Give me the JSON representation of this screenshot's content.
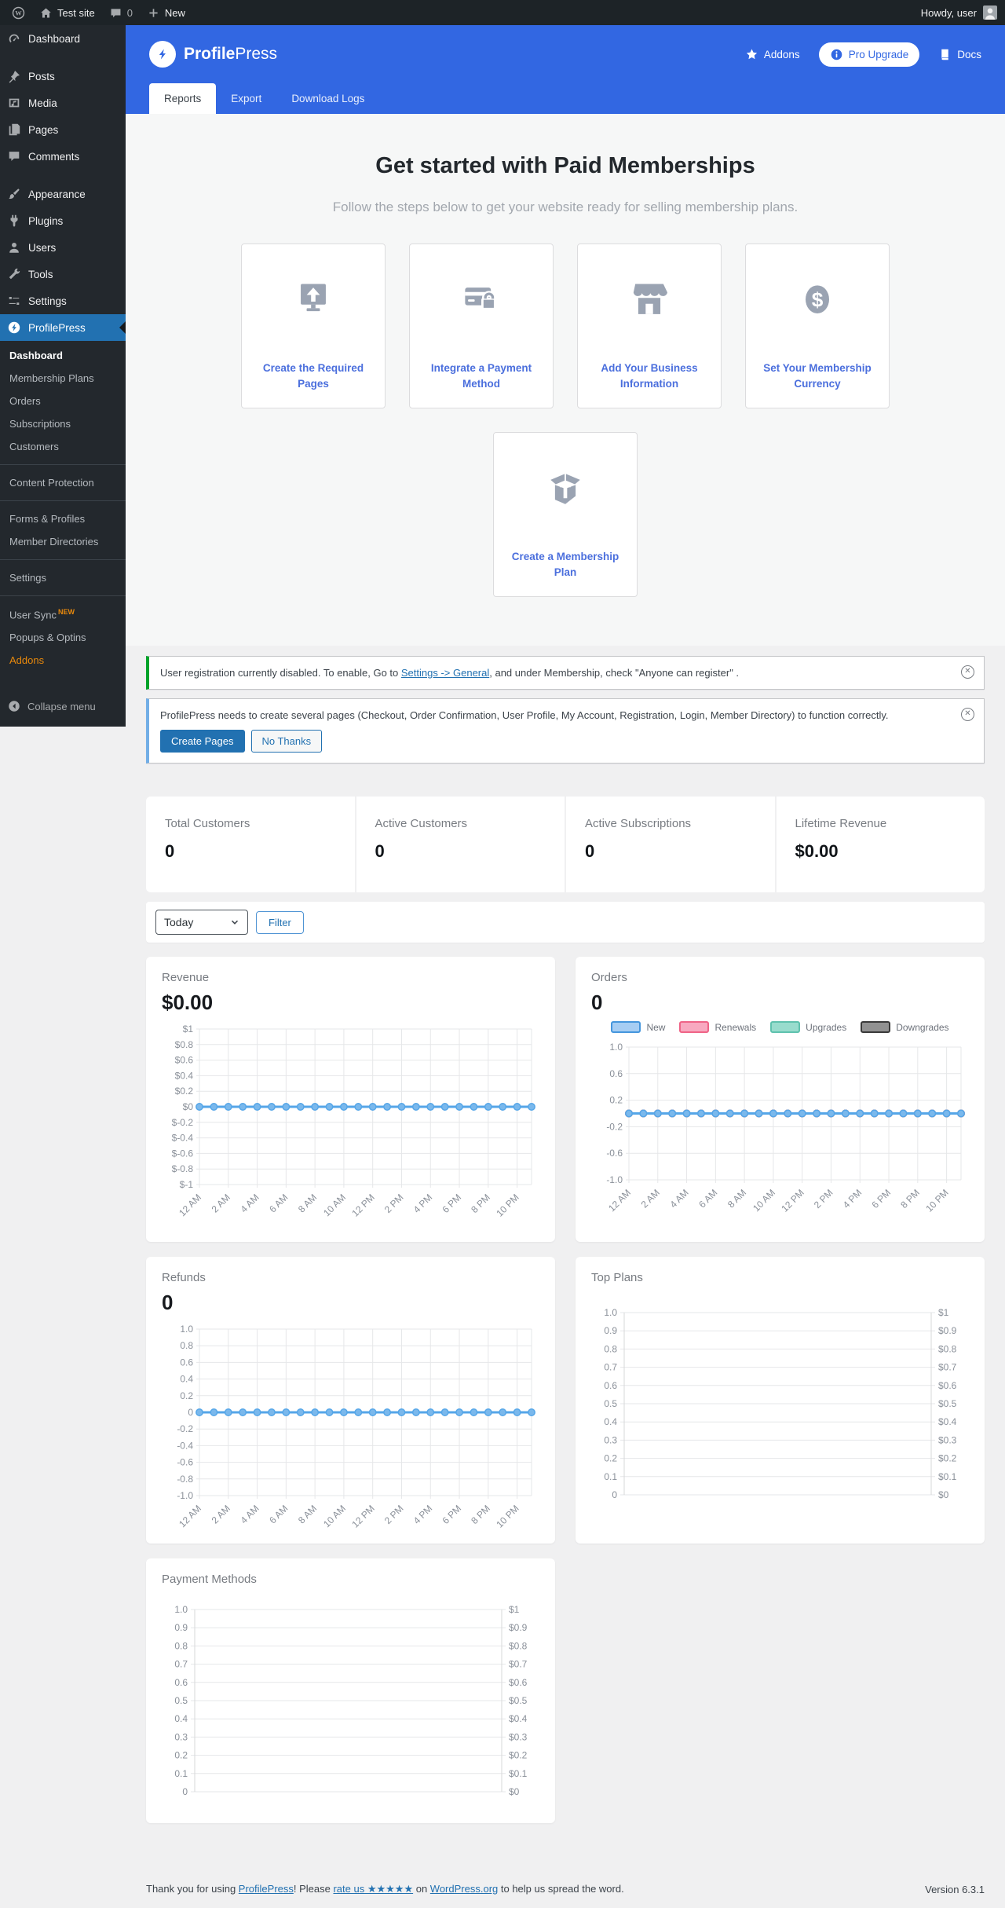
{
  "admin_bar": {
    "site_name": "Test site",
    "comments_count": "0",
    "new_label": "New",
    "howdy": "Howdy, user"
  },
  "sidebar": {
    "items": [
      {
        "label": "Dashboard"
      },
      {
        "label": "Posts"
      },
      {
        "label": "Media"
      },
      {
        "label": "Pages"
      },
      {
        "label": "Comments"
      },
      {
        "label": "Appearance"
      },
      {
        "label": "Plugins"
      },
      {
        "label": "Users"
      },
      {
        "label": "Tools"
      },
      {
        "label": "Settings"
      },
      {
        "label": "ProfilePress"
      }
    ],
    "submenu": [
      {
        "label": "Dashboard"
      },
      {
        "label": "Membership Plans"
      },
      {
        "label": "Orders"
      },
      {
        "label": "Subscriptions"
      },
      {
        "label": "Customers"
      },
      {
        "label": "Content Protection"
      },
      {
        "label": "Forms & Profiles"
      },
      {
        "label": "Member Directories"
      },
      {
        "label": "Settings"
      },
      {
        "label": "User Sync",
        "badge": "NEW"
      },
      {
        "label": "Popups & Optins"
      },
      {
        "label": "Addons"
      }
    ],
    "collapse": "Collapse menu"
  },
  "header": {
    "brand_bold": "Profile",
    "brand_rest": "Press",
    "addons": "Addons",
    "pro_upgrade": "Pro Upgrade",
    "docs": "Docs",
    "tabs": [
      {
        "label": "Reports"
      },
      {
        "label": "Export"
      },
      {
        "label": "Download Logs"
      }
    ]
  },
  "getting_started": {
    "title": "Get started with Paid Memberships",
    "subtitle": "Follow the steps below to get your website ready for selling membership plans.",
    "cards": [
      {
        "label": "Create the Required Pages"
      },
      {
        "label": "Integrate a Payment Method"
      },
      {
        "label": "Add Your Business Information"
      },
      {
        "label": "Set Your Membership Currency"
      },
      {
        "label": "Create a Membership Plan"
      }
    ]
  },
  "notices": [
    {
      "text_before": "User registration currently disabled. To enable, Go to ",
      "link": "Settings -> General",
      "text_after": ", and under Membership, check \"Anyone can register\" ."
    },
    {
      "text": "ProfilePress needs to create several pages (Checkout, Order Confirmation, User Profile, My Account, Registration, Login, Member Directory) to function correctly.",
      "buttons": [
        "Create Pages",
        "No Thanks"
      ]
    }
  ],
  "stats": [
    {
      "label": "Total Customers",
      "value": "0"
    },
    {
      "label": "Active Customers",
      "value": "0"
    },
    {
      "label": "Active Subscriptions",
      "value": "0"
    },
    {
      "label": "Lifetime Revenue",
      "value": "$0.00"
    }
  ],
  "filter": {
    "selected": "Today",
    "button": "Filter"
  },
  "charts": {
    "x_labels": [
      "12 AM",
      "2 AM",
      "4 AM",
      "6 AM",
      "8 AM",
      "10 AM",
      "12 PM",
      "2 PM",
      "4 PM",
      "6 PM",
      "8 PM",
      "10 PM"
    ],
    "n_points": 24,
    "grid_color": "#e6e7e9",
    "axis_color": "#d7d8da",
    "label_color": "#8a9099",
    "marker_fill": "#7ab8ec",
    "revenue": {
      "type": "line",
      "title": "Revenue",
      "value": "$0.00",
      "ylim": [
        -1,
        1
      ],
      "y_ticks": [
        1,
        0.8,
        0.6,
        0.4,
        0.2,
        0,
        -0.2,
        -0.4,
        -0.6,
        -0.8,
        -1
      ],
      "y_labels": [
        "$1",
        "$0.8",
        "$0.6",
        "$0.4",
        "$0.2",
        "$0",
        "$-0.2",
        "$-0.4",
        "$-0.6",
        "$-0.8",
        "$-1"
      ],
      "series": [
        {
          "name": "Revenue",
          "color": "#55a6e8",
          "values": [
            0,
            0,
            0,
            0,
            0,
            0,
            0,
            0,
            0,
            0,
            0,
            0,
            0,
            0,
            0,
            0,
            0,
            0,
            0,
            0,
            0,
            0,
            0,
            0
          ]
        }
      ]
    },
    "orders": {
      "type": "line",
      "title": "Orders",
      "value": "0",
      "ylim": [
        -1,
        1
      ],
      "y_ticks": [
        1,
        0.6,
        0.2,
        -0.2,
        -0.6,
        -1
      ],
      "y_labels": [
        "1.0",
        "0.6",
        "0.2",
        "-0.2",
        "-0.6",
        "-1.0"
      ],
      "legend": [
        {
          "label": "New",
          "fill": "#a6cdf3",
          "border": "#4596dd"
        },
        {
          "label": "Renewals",
          "fill": "#f8a9c0",
          "border": "#ef6487"
        },
        {
          "label": "Upgrades",
          "fill": "#98dccd",
          "border": "#5fc2ae"
        },
        {
          "label": "Downgrades",
          "fill": "#919191",
          "border": "#3a3a3a"
        }
      ],
      "series": [
        {
          "name": "Downgrades",
          "color": "#3a3a3a",
          "values": [
            0,
            0,
            0,
            0,
            0,
            0,
            0,
            0,
            0,
            0,
            0,
            0,
            0,
            0,
            0,
            0,
            0,
            0,
            0,
            0,
            0,
            0,
            0,
            0
          ]
        },
        {
          "name": "Upgrades",
          "color": "#5fc2ae",
          "values": [
            0,
            0,
            0,
            0,
            0,
            0,
            0,
            0,
            0,
            0,
            0,
            0,
            0,
            0,
            0,
            0,
            0,
            0,
            0,
            0,
            0,
            0,
            0,
            0
          ]
        },
        {
          "name": "Renewals",
          "color": "#ef6487",
          "values": [
            0,
            0,
            0,
            0,
            0,
            0,
            0,
            0,
            0,
            0,
            0,
            0,
            0,
            0,
            0,
            0,
            0,
            0,
            0,
            0,
            0,
            0,
            0,
            0
          ]
        },
        {
          "name": "New",
          "color": "#55a6e8",
          "values": [
            0,
            0,
            0,
            0,
            0,
            0,
            0,
            0,
            0,
            0,
            0,
            0,
            0,
            0,
            0,
            0,
            0,
            0,
            0,
            0,
            0,
            0,
            0,
            0
          ]
        }
      ]
    },
    "refunds": {
      "type": "line",
      "title": "Refunds",
      "value": "0",
      "ylim": [
        -1,
        1
      ],
      "y_ticks": [
        1,
        0.8,
        0.6,
        0.4,
        0.2,
        0,
        -0.2,
        -0.4,
        -0.6,
        -0.8,
        -1
      ],
      "y_labels": [
        "1.0",
        "0.8",
        "0.6",
        "0.4",
        "0.2",
        "0",
        "-0.2",
        "-0.4",
        "-0.6",
        "-0.8",
        "-1.0"
      ],
      "series": [
        {
          "name": "Refunds",
          "color": "#55a6e8",
          "values": [
            0,
            0,
            0,
            0,
            0,
            0,
            0,
            0,
            0,
            0,
            0,
            0,
            0,
            0,
            0,
            0,
            0,
            0,
            0,
            0,
            0,
            0,
            0,
            0
          ]
        }
      ]
    },
    "top_plans": {
      "type": "dual",
      "title": "Top Plans",
      "left_labels": [
        "1.0",
        "0.9",
        "0.8",
        "0.7",
        "0.6",
        "0.5",
        "0.4",
        "0.3",
        "0.2",
        "0.1",
        "0"
      ],
      "right_labels": [
        "$1",
        "$0.9",
        "$0.8",
        "$0.7",
        "$0.6",
        "$0.5",
        "$0.4",
        "$0.3",
        "$0.2",
        "$0.1",
        "$0"
      ],
      "series": []
    },
    "payment_methods": {
      "type": "dual",
      "title": "Payment Methods",
      "left_labels": [
        "1.0",
        "0.9",
        "0.8",
        "0.7",
        "0.6",
        "0.5",
        "0.4",
        "0.3",
        "0.2",
        "0.1",
        "0"
      ],
      "right_labels": [
        "$1",
        "$0.9",
        "$0.8",
        "$0.7",
        "$0.6",
        "$0.5",
        "$0.4",
        "$0.3",
        "$0.2",
        "$0.1",
        "$0"
      ],
      "series": []
    }
  },
  "footer": {
    "t1": "Thank you for using ",
    "l1": "ProfilePress",
    "t2": "! Please ",
    "l2": "rate us ★★★★★",
    "t3": " on ",
    "l3": "WordPress.org",
    "t4": " to help us spread the word.",
    "version": "Version 6.3.1"
  }
}
